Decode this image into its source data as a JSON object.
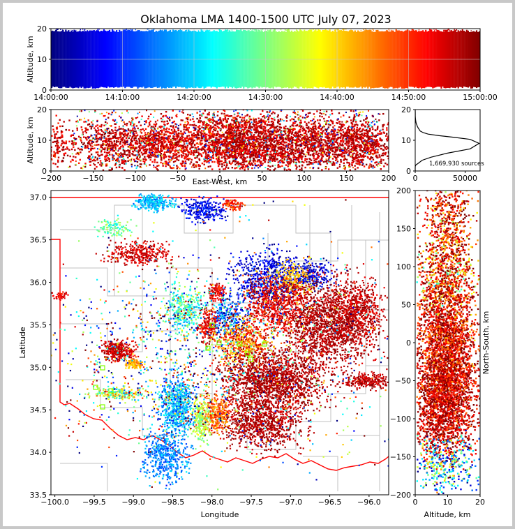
{
  "figure": {
    "title": "Oklahoma LMA 1400-1500 UTC July 07, 2023"
  },
  "colors": {
    "state_border": "#ff0000",
    "county_lines": "#c0c0c0",
    "station_marker": "#7fff00",
    "histogram_line": "#000000",
    "colormap": [
      "#00007f",
      "#0000ff",
      "#007fff",
      "#00ffff",
      "#7fff7f",
      "#ffff00",
      "#ff7f00",
      "#ff0000",
      "#7f0000"
    ]
  },
  "chart_data": [
    {
      "id": "time_height",
      "type": "scatter",
      "ylabel": "Altitude, km",
      "xlabel": "",
      "ylim": [
        0,
        20
      ],
      "yticks": [
        "0",
        "10",
        "20"
      ],
      "xticks": [
        "14:00:00",
        "14:10:00",
        "14:20:00",
        "14:30:00",
        "14:40:00",
        "14:50:00",
        "15:00:00"
      ],
      "xlim": [
        "14:00:00",
        "15:00:00"
      ],
      "grid": true,
      "color_by": "time"
    },
    {
      "id": "ew_altitude",
      "type": "scatter",
      "xlabel": "East-West, km",
      "ylabel": "Altitude, km",
      "xlim": [
        -200,
        200
      ],
      "ylim": [
        0,
        20
      ],
      "xticks": [
        "−200",
        "−150",
        "−100",
        "−50",
        "0",
        "50",
        "100",
        "150",
        "200"
      ],
      "yticks": [
        "0",
        "10",
        "20"
      ],
      "color_by": "time"
    },
    {
      "id": "altitude_histogram",
      "type": "line",
      "xlim": [
        0,
        65000
      ],
      "ylim": [
        0,
        20
      ],
      "xticks": [
        "0",
        "50000"
      ],
      "yticks": [
        "0",
        "10",
        "20"
      ],
      "annotation": "1,669,930 sources",
      "x": [
        60,
        20,
        30,
        40,
        500,
        3000,
        7000,
        16000,
        32000,
        55000,
        64000,
        55000,
        38000,
        24000,
        13000,
        8000,
        5000,
        4000,
        3000,
        2200,
        1600,
        1000,
        700,
        400,
        250,
        150,
        90,
        50,
        20
      ],
      "y": [
        0,
        0.5,
        1.0,
        1.5,
        1.9,
        2.5,
        3.5,
        4.5,
        5.8,
        7.2,
        9.0,
        10.3,
        11.0,
        11.5,
        12.0,
        12.5,
        13.0,
        13.5,
        14.0,
        14.5,
        15.0,
        15.5,
        16.0,
        16.5,
        17.0,
        17.5,
        18.0,
        19.0,
        20.0
      ]
    },
    {
      "id": "plan_view",
      "type": "scatter",
      "xlabel": "Longitude",
      "ylabel": "Latitude",
      "xlim": [
        -100.05,
        -95.75
      ],
      "ylim": [
        33.5,
        37.08
      ],
      "xticks": [
        "−100.0",
        "−99.5",
        "−99.0",
        "−98.5",
        "−98.0",
        "−97.5",
        "−97.0",
        "−96.5",
        "−96.0"
      ],
      "yticks": [
        "33.5",
        "34.0",
        "34.5",
        "35.0",
        "35.5",
        "36.0",
        "36.5",
        "37.0"
      ],
      "color_by": "time",
      "clusters": [
        {
          "lon": -98.75,
          "lat": 36.95,
          "rx": 0.22,
          "ry": 0.08,
          "c": 0.32,
          "cs": 0.05,
          "n": 260
        },
        {
          "lon": -98.1,
          "lat": 36.85,
          "rx": 0.25,
          "ry": 0.12,
          "c": 0.12,
          "cs": 0.05,
          "n": 280
        },
        {
          "lon": -97.75,
          "lat": 36.92,
          "rx": 0.12,
          "ry": 0.06,
          "c": 0.85,
          "cs": 0.06,
          "n": 90
        },
        {
          "lon": -99.25,
          "lat": 36.65,
          "rx": 0.2,
          "ry": 0.1,
          "c": 0.47,
          "cs": 0.06,
          "n": 110
        },
        {
          "lon": -98.95,
          "lat": 36.35,
          "rx": 0.35,
          "ry": 0.12,
          "c": 0.92,
          "cs": 0.04,
          "n": 330
        },
        {
          "lon": -97.3,
          "lat": 36.05,
          "rx": 0.4,
          "ry": 0.3,
          "c": 0.1,
          "cs": 0.05,
          "n": 650
        },
        {
          "lon": -96.75,
          "lat": 36.1,
          "rx": 0.25,
          "ry": 0.15,
          "c": 0.08,
          "cs": 0.05,
          "n": 250
        },
        {
          "lon": -97.0,
          "lat": 36.05,
          "rx": 0.22,
          "ry": 0.18,
          "c": 0.68,
          "cs": 0.03,
          "n": 200
        },
        {
          "lon": -96.5,
          "lat": 35.55,
          "rx": 0.5,
          "ry": 0.45,
          "c": 0.95,
          "cs": 0.03,
          "n": 1700
        },
        {
          "lon": -97.2,
          "lat": 35.75,
          "rx": 0.35,
          "ry": 0.3,
          "c": 0.9,
          "cs": 0.05,
          "n": 700
        },
        {
          "lon": -96.1,
          "lat": 35.7,
          "rx": 0.25,
          "ry": 0.3,
          "c": 0.93,
          "cs": 0.04,
          "n": 380
        },
        {
          "lon": -96.05,
          "lat": 34.85,
          "rx": 0.3,
          "ry": 0.08,
          "c": 0.94,
          "cs": 0.03,
          "n": 240
        },
        {
          "lon": -97.95,
          "lat": 35.9,
          "rx": 0.1,
          "ry": 0.1,
          "c": 0.9,
          "cs": 0.04,
          "n": 110
        },
        {
          "lon": -97.8,
          "lat": 35.6,
          "rx": 0.2,
          "ry": 0.2,
          "c": 0.2,
          "cs": 0.12,
          "n": 250
        },
        {
          "lon": -98.35,
          "lat": 35.7,
          "rx": 0.2,
          "ry": 0.25,
          "c": 0.42,
          "cs": 0.1,
          "n": 330
        },
        {
          "lon": -98.05,
          "lat": 35.5,
          "rx": 0.12,
          "ry": 0.2,
          "c": 0.9,
          "cs": 0.05,
          "n": 200
        },
        {
          "lon": -97.6,
          "lat": 35.3,
          "rx": 0.3,
          "ry": 0.25,
          "c": 0.78,
          "cs": 0.12,
          "n": 550
        },
        {
          "lon": -97.2,
          "lat": 34.85,
          "rx": 0.6,
          "ry": 0.3,
          "c": 0.95,
          "cs": 0.03,
          "n": 1600
        },
        {
          "lon": -97.35,
          "lat": 34.35,
          "rx": 0.45,
          "ry": 0.25,
          "c": 0.95,
          "cs": 0.03,
          "n": 900
        },
        {
          "lon": -97.95,
          "lat": 34.45,
          "rx": 0.2,
          "ry": 0.2,
          "c": 0.78,
          "cs": 0.06,
          "n": 300
        },
        {
          "lon": -98.15,
          "lat": 34.4,
          "rx": 0.1,
          "ry": 0.25,
          "c": 0.55,
          "cs": 0.05,
          "n": 220
        },
        {
          "lon": -98.45,
          "lat": 34.55,
          "rx": 0.18,
          "ry": 0.3,
          "c": 0.3,
          "cs": 0.08,
          "n": 600
        },
        {
          "lon": -98.6,
          "lat": 33.95,
          "rx": 0.25,
          "ry": 0.25,
          "c": 0.26,
          "cs": 0.05,
          "n": 450
        },
        {
          "lon": -99.2,
          "lat": 35.2,
          "rx": 0.18,
          "ry": 0.1,
          "c": 0.93,
          "cs": 0.03,
          "n": 320
        },
        {
          "lon": -99.0,
          "lat": 35.05,
          "rx": 0.1,
          "ry": 0.05,
          "c": 0.7,
          "cs": 0.05,
          "n": 100
        },
        {
          "lon": -99.2,
          "lat": 34.7,
          "rx": 0.3,
          "ry": 0.06,
          "c": 0.55,
          "cs": 0.15,
          "n": 180
        },
        {
          "lon": -98.8,
          "lat": 35.1,
          "rx": 1.1,
          "ry": 0.9,
          "c": 0.5,
          "cs": 0.35,
          "n": 600
        },
        {
          "lon": -97.6,
          "lat": 35.2,
          "rx": 1.8,
          "ry": 1.3,
          "c": 0.5,
          "cs": 0.4,
          "n": 900
        },
        {
          "lon": -99.95,
          "lat": 35.85,
          "rx": 0.1,
          "ry": 0.04,
          "c": 0.9,
          "cs": 0.03,
          "n": 40
        }
      ]
    },
    {
      "id": "altitude_ns",
      "type": "scatter",
      "xlabel": "Altitude, km",
      "ylabel": "North-South, km",
      "xlim": [
        0,
        20
      ],
      "ylim": [
        -200,
        200
      ],
      "xticks": [
        "0",
        "10",
        "20"
      ],
      "yticks": [
        "−200",
        "−150",
        "−100",
        "−50",
        "0",
        "50",
        "100",
        "150",
        "200"
      ],
      "color_by": "time"
    }
  ]
}
